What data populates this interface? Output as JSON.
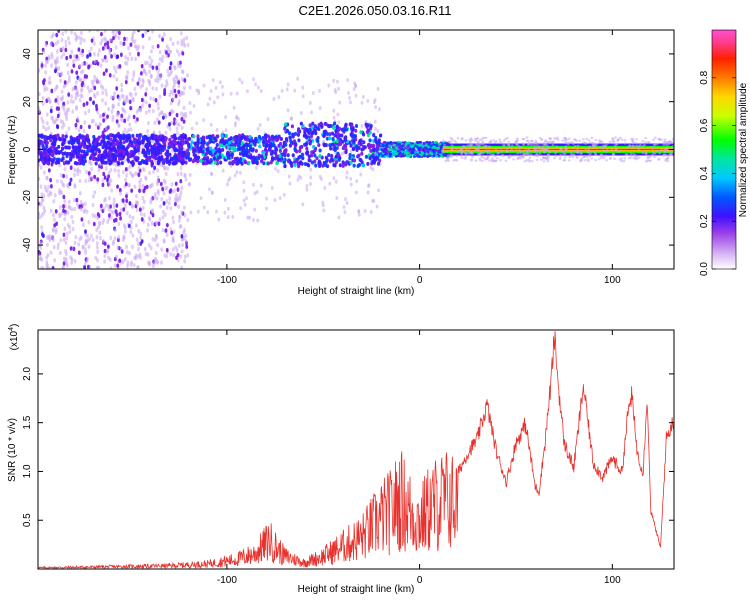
{
  "title": "C2E1.2026.050.03.16.R11",
  "chart_data": [
    {
      "type": "heatmap",
      "xlabel": "Height of straight line (km)",
      "ylabel": "Frequency (Hz)",
      "xlim": [
        -198,
        132
      ],
      "ylim": [
        -50,
        50
      ],
      "xticks": [
        -100,
        0,
        100
      ],
      "yticks": [
        -40,
        -20,
        0,
        20,
        40
      ],
      "colorbar": {
        "label": "Normalized spectral amplitude",
        "range": [
          0,
          1
        ],
        "ticks": [
          "0.0",
          "0.2",
          "0.4",
          "0.6",
          "0.8"
        ],
        "colors": [
          "#ffffff",
          "#c9a6f0",
          "#7a1ee8",
          "#3a1bff",
          "#0046ff",
          "#00c8ff",
          "#00e0a0",
          "#00ff00",
          "#c8ff00",
          "#ffd800",
          "#ff7a00",
          "#ff2000",
          "#ff3ca0",
          "#ff50d0"
        ]
      }
    },
    {
      "type": "line",
      "xlabel": "Height of straight line (km)",
      "ylabel": "SNR (10 * v/v)",
      "y_multiplier": "(x10",
      "y_multiplier_exp": "4",
      "y_multiplier_close": ")",
      "xlim": [
        -198,
        132
      ],
      "ylim": [
        0,
        2.45
      ],
      "xticks": [
        -100,
        0,
        100
      ],
      "yticks": [
        "0.5",
        "1.0",
        "1.5",
        "2.0"
      ],
      "series_color": "#e8302c",
      "series": [
        {
          "name": "SNR",
          "x": [
            -198,
            -170,
            -150,
            -130,
            -110,
            -95,
            -85,
            -78,
            -70,
            -60,
            -50,
            -40,
            -30,
            -20,
            -15,
            -10,
            -5,
            0,
            5,
            10,
            15,
            20,
            25,
            30,
            35,
            40,
            45,
            50,
            55,
            60,
            62,
            65,
            68,
            70,
            72,
            75,
            80,
            85,
            90,
            95,
            100,
            105,
            108,
            110,
            113,
            116,
            118,
            120,
            125,
            128,
            130,
            132
          ],
          "y": [
            0.02,
            0.03,
            0.04,
            0.05,
            0.08,
            0.15,
            0.25,
            0.45,
            0.2,
            0.1,
            0.2,
            0.35,
            0.5,
            0.8,
            0.9,
            1.1,
            0.9,
            0.75,
            0.95,
            1.05,
            1.1,
            1.0,
            1.2,
            1.35,
            1.7,
            1.2,
            0.9,
            1.3,
            1.5,
            0.85,
            0.8,
            1.3,
            1.9,
            2.4,
            1.9,
            1.3,
            1.05,
            1.9,
            1.1,
            0.95,
            1.15,
            1.0,
            1.6,
            1.8,
            1.2,
            1.0,
            1.8,
            0.6,
            0.22,
            1.35,
            1.45,
            1.55
          ]
        }
      ]
    }
  ]
}
